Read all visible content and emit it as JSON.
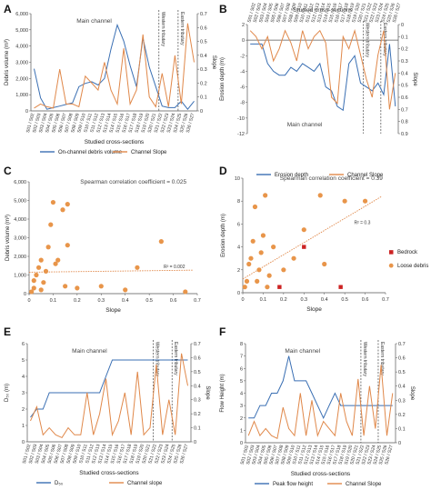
{
  "colors": {
    "blue": "#3a6fb3",
    "orange": "#e0884a",
    "dot": "#e8954a",
    "red": "#cc2222"
  },
  "chart_data": [
    {
      "letter": "A",
      "type": "line",
      "note": "Main channel",
      "xlabel": "Studied cross-sections",
      "ylabel": "Debris volume (m³)",
      "y2label": "Slope",
      "ylim": [
        0,
        6000
      ],
      "yticks": [
        "0",
        "1,000",
        "2,000",
        "3,000",
        "4,000",
        "5,000",
        "6,000"
      ],
      "y2lim": [
        0,
        0.7
      ],
      "y2ticks": [
        "0",
        "0.1",
        "0.2",
        "0.3",
        "0.4",
        "0.5",
        "0.6",
        "0.7"
      ],
      "categories": [
        "S01 / S02",
        "S02 / S03",
        "S03 / S04",
        "S04 / S05",
        "S05 / S06",
        "S06 / S07",
        "S07 / S08",
        "S08 / S09",
        "S09 / S10",
        "S10 / S11",
        "S11 / S12",
        "S12 / S13",
        "S13 / S14",
        "S14 / S15",
        "S15 / S16",
        "S16 / S17",
        "S17 / S18",
        "S18 / S19",
        "S19 / S20",
        "S20 / S21",
        "S21 / S22",
        "S22 / S23",
        "S23 / S24",
        "S24 / S25",
        "S25 / S26",
        "S26 / S27"
      ],
      "tributaries": [
        "Western tributary",
        "Eastern tributary"
      ],
      "series": [
        {
          "name": "On-channel debris volume",
          "axis": "left",
          "color": "#3a6fb3",
          "values": [
            2600,
            800,
            100,
            200,
            300,
            400,
            500,
            1500,
            1700,
            1800,
            1600,
            2000,
            3800,
            5300,
            4300,
            2800,
            1500,
            4500,
            2700,
            1500,
            300,
            200,
            200,
            600,
            100,
            600
          ]
        },
        {
          "name": "Channel Slope",
          "axis": "right",
          "color": "#e0884a",
          "values": [
            0.02,
            0.05,
            0.03,
            0.02,
            0.3,
            0.05,
            0.05,
            0.03,
            0.25,
            0.2,
            0.15,
            0.35,
            0.15,
            0.05,
            0.45,
            0.05,
            0.15,
            0.55,
            0.1,
            0.03,
            0.27,
            0.03,
            0.4,
            0.05,
            0.63,
            0.35
          ]
        }
      ]
    },
    {
      "letter": "B",
      "type": "line",
      "title": "Studied cross-sections",
      "note": "Main channel",
      "xlabel": "",
      "ylabel": "Erosion depth (m)",
      "y2label": "Slope",
      "ylim": [
        -12,
        2
      ],
      "yticks": [
        "2",
        "0",
        "-2",
        "-4",
        "-6",
        "-8",
        "-10",
        "-12"
      ],
      "y2lim": [
        0.9,
        0
      ],
      "y2ticks": [
        "0",
        "0.1",
        "0.2",
        "0.3",
        "0.4",
        "0.5",
        "0.6",
        "0.7",
        "0.8",
        "0.9"
      ],
      "categories": [
        "S01 / S02",
        "S02 / S03",
        "S03 / S04",
        "S04 / S05",
        "S05 / S06",
        "S06 / S07",
        "S07 / S08",
        "S08 / S09",
        "S09 / S10",
        "S10 / S11",
        "S11 / S12",
        "S12 / S13",
        "S13 / S14",
        "S14 / S15",
        "S15 / S16",
        "S16 / S17",
        "S17 / S18",
        "S18 / S19",
        "S19 / S20",
        "S20 / S21",
        "S21 / S22",
        "S22 / S23",
        "S23 / S24",
        "S24 / S25",
        "S25 / S26",
        "S26 / S27"
      ],
      "tributaries": [
        "Western tributary",
        "Eastern tributary"
      ],
      "series": [
        {
          "name": "Erosion depth",
          "axis": "left",
          "color": "#3a6fb3",
          "values": [
            -0.5,
            -0.5,
            -0.5,
            -3,
            -4,
            -4.5,
            -4.5,
            -3.5,
            -4,
            -3,
            -3.5,
            -4,
            -3,
            -6,
            -6.5,
            -8.5,
            -9,
            -3,
            -2,
            -5.5,
            -6,
            -6.5,
            -5.5,
            -7,
            -0.5,
            -8.5
          ]
        },
        {
          "name": "Channel Slope",
          "axis": "right",
          "color": "#e0884a",
          "values": [
            0.05,
            0.1,
            0.2,
            0.1,
            0.3,
            0.2,
            0.05,
            0.15,
            0.3,
            0.05,
            0.2,
            0.1,
            0.05,
            0.15,
            0.6,
            0.65,
            0.1,
            0.2,
            0.05,
            0.25,
            0.45,
            0.6,
            0.25,
            0.05,
            0.7,
            0.4
          ]
        }
      ]
    },
    {
      "letter": "C",
      "type": "scatter",
      "title": "Spearman correlation coefficient = 0.025",
      "xlabel": "Slope",
      "ylabel": "Debris volume (m³)",
      "xlim": [
        0,
        0.7
      ],
      "xticks": [
        "0",
        "0.1",
        "0.2",
        "0.3",
        "0.4",
        "0.5",
        "0.6",
        "0.7"
      ],
      "ylim": [
        0,
        6000
      ],
      "yticks": [
        "0",
        "1,000",
        "2,000",
        "3,000",
        "4,000",
        "5,000",
        "6,000"
      ],
      "r2": "R² = 0.002",
      "trend": {
        "x": [
          0,
          0.68
        ],
        "y": [
          1150,
          1260
        ]
      },
      "points": [
        {
          "x": 0.01,
          "y": 100
        },
        {
          "x": 0.02,
          "y": 300
        },
        {
          "x": 0.02,
          "y": 700
        },
        {
          "x": 0.03,
          "y": 1000
        },
        {
          "x": 0.04,
          "y": 1400
        },
        {
          "x": 0.05,
          "y": 1800
        },
        {
          "x": 0.05,
          "y": 200
        },
        {
          "x": 0.06,
          "y": 600
        },
        {
          "x": 0.07,
          "y": 1200
        },
        {
          "x": 0.08,
          "y": 2500
        },
        {
          "x": 0.09,
          "y": 3700
        },
        {
          "x": 0.1,
          "y": 4900
        },
        {
          "x": 0.11,
          "y": 1600
        },
        {
          "x": 0.12,
          "y": 1800
        },
        {
          "x": 0.14,
          "y": 4500
        },
        {
          "x": 0.16,
          "y": 4800
        },
        {
          "x": 0.16,
          "y": 2600
        },
        {
          "x": 0.15,
          "y": 400
        },
        {
          "x": 0.2,
          "y": 300
        },
        {
          "x": 0.3,
          "y": 400
        },
        {
          "x": 0.4,
          "y": 200
        },
        {
          "x": 0.45,
          "y": 1400
        },
        {
          "x": 0.55,
          "y": 2800
        },
        {
          "x": 0.65,
          "y": 100
        }
      ]
    },
    {
      "letter": "D",
      "type": "scatter",
      "title": "Spearman correlation coefficient = 0.39",
      "xlabel": "Slope",
      "ylabel": "Erosion depth (m)",
      "xlim": [
        0,
        0.7
      ],
      "xticks": [
        "0",
        "0.1",
        "0.2",
        "0.3",
        "0.4",
        "0.5",
        "0.6",
        "0.7"
      ],
      "ylim": [
        0,
        10
      ],
      "yticks": [
        "0",
        "2",
        "4",
        "6",
        "8",
        "10"
      ],
      "r2": "R² = 0.3",
      "trend": {
        "x": [
          0,
          0.68
        ],
        "y": [
          1.2,
          8.4
        ]
      },
      "legend": [
        "Bedrock",
        "Loose debris"
      ],
      "points": [
        {
          "x": 0.01,
          "y": 0.5
        },
        {
          "x": 0.02,
          "y": 1
        },
        {
          "x": 0.03,
          "y": 2.5
        },
        {
          "x": 0.04,
          "y": 3
        },
        {
          "x": 0.05,
          "y": 4.5
        },
        {
          "x": 0.06,
          "y": 7.5
        },
        {
          "x": 0.07,
          "y": 1
        },
        {
          "x": 0.08,
          "y": 2
        },
        {
          "x": 0.09,
          "y": 3.5
        },
        {
          "x": 0.1,
          "y": 5
        },
        {
          "x": 0.11,
          "y": 8.5
        },
        {
          "x": 0.12,
          "y": 0.5
        },
        {
          "x": 0.13,
          "y": 1.5
        },
        {
          "x": 0.15,
          "y": 4
        },
        {
          "x": 0.2,
          "y": 2
        },
        {
          "x": 0.25,
          "y": 3
        },
        {
          "x": 0.3,
          "y": 5.5
        },
        {
          "x": 0.38,
          "y": 8.5
        },
        {
          "x": 0.4,
          "y": 2.5
        },
        {
          "x": 0.5,
          "y": 8
        },
        {
          "x": 0.6,
          "y": 8
        }
      ],
      "bedrock_points": [
        {
          "x": 0.18,
          "y": 0.5
        },
        {
          "x": 0.3,
          "y": 4
        },
        {
          "x": 0.48,
          "y": 0.5
        }
      ]
    },
    {
      "letter": "E",
      "type": "line",
      "note": "Main channel",
      "xlabel": "Studied cross-sections",
      "ylabel": "D₅₀ (m)",
      "y2label": "Slope",
      "ylim": [
        0,
        6
      ],
      "yticks": [
        "0",
        "1",
        "2",
        "3",
        "4",
        "5",
        "6"
      ],
      "y2lim": [
        0,
        0.7
      ],
      "y2ticks": [
        "0",
        "0.1",
        "0.2",
        "0.3",
        "0.4",
        "0.5",
        "0.6",
        "0.7"
      ],
      "categories": [
        "S01 / S02",
        "S02 / S03",
        "S03 / S04",
        "S04 / S05",
        "S05 / S06",
        "S06 / S07",
        "S07 / S08",
        "S08 / S09",
        "S09 / S10",
        "S10 / S11",
        "S11 / S12",
        "S12 / S13",
        "S13 / S14",
        "S14 / S15",
        "S15 / S16",
        "S16 / S17",
        "S17 / S18",
        "S18 / S19",
        "S19 / S20",
        "S20 / S21",
        "S21 / S22",
        "S22 / S23",
        "S23 / S24",
        "S24 / S25",
        "S25 / S26",
        "S26 / S27"
      ],
      "tributaries": [
        "Western tributary",
        "Eastern tributary"
      ],
      "series": [
        {
          "name": "D₅₀",
          "axis": "left",
          "color": "#3a6fb3",
          "values": [
            1.5,
            2,
            2,
            3,
            3,
            3,
            3,
            3,
            3,
            3,
            3,
            3,
            4,
            5,
            5,
            5,
            5,
            5,
            5,
            5,
            5,
            5,
            5,
            5,
            5,
            5
          ]
        },
        {
          "name": "Channel slope",
          "axis": "right",
          "color": "#e0884a",
          "values": [
            0.15,
            0.25,
            0.05,
            0.1,
            0.05,
            0.03,
            0.1,
            0.05,
            0.05,
            0.35,
            0.05,
            0.2,
            0.45,
            0.05,
            0.15,
            0.35,
            0.05,
            0.5,
            0.05,
            0.1,
            0.55,
            0.05,
            0.3,
            0.05,
            0.63,
            0.4
          ]
        }
      ]
    },
    {
      "letter": "F",
      "type": "line",
      "note": "Main channel",
      "xlabel": "Studied cross-sections",
      "ylabel": "Flow Height (m)",
      "y2label": "Slope",
      "ylim": [
        0,
        8
      ],
      "yticks": [
        "0",
        "1",
        "2",
        "3",
        "4",
        "5",
        "6",
        "7",
        "8"
      ],
      "y2lim": [
        0,
        0.7
      ],
      "y2ticks": [
        "0",
        "0.1",
        "0.2",
        "0.3",
        "0.4",
        "0.5",
        "0.6",
        "0.7"
      ],
      "categories": [
        "S01 / S02",
        "S02 / S03",
        "S03 / S04",
        "S04 / S05",
        "S05 / S06",
        "S06 / S07",
        "S07 / S08",
        "S08 / S09",
        "S09 / S10",
        "S10 / S11",
        "S11 / S12",
        "S12 / S13",
        "S13 / S14",
        "S14 / S15",
        "S15 / S16",
        "S16 / S17",
        "S17 / S18",
        "S18 / S19",
        "S19 / S20",
        "S20 / S21",
        "S21 / S22",
        "S22 / S23",
        "S23 / S24",
        "S24 / S25",
        "S25 / S26",
        "S26 / S27"
      ],
      "tributaries": [
        "Western tributary",
        "Eastern tributary"
      ],
      "series": [
        {
          "name": "Peak flow height",
          "axis": "left",
          "color": "#3a6fb3",
          "values": [
            2,
            2,
            3,
            3,
            4,
            4,
            5,
            7,
            5,
            5,
            5,
            4,
            3,
            2,
            3,
            4,
            3,
            3,
            3,
            3,
            3,
            3,
            3,
            3,
            3,
            3
          ]
        },
        {
          "name": "Channel Slope",
          "axis": "right",
          "color": "#e0884a",
          "values": [
            0.05,
            0.15,
            0.05,
            0.1,
            0.05,
            0.03,
            0.25,
            0.1,
            0.05,
            0.35,
            0.05,
            0.3,
            0.05,
            0.15,
            0.1,
            0.05,
            0.35,
            0.15,
            0.05,
            0.45,
            0.05,
            0.4,
            0.1,
            0.55,
            0.05,
            0.35
          ]
        }
      ]
    }
  ]
}
